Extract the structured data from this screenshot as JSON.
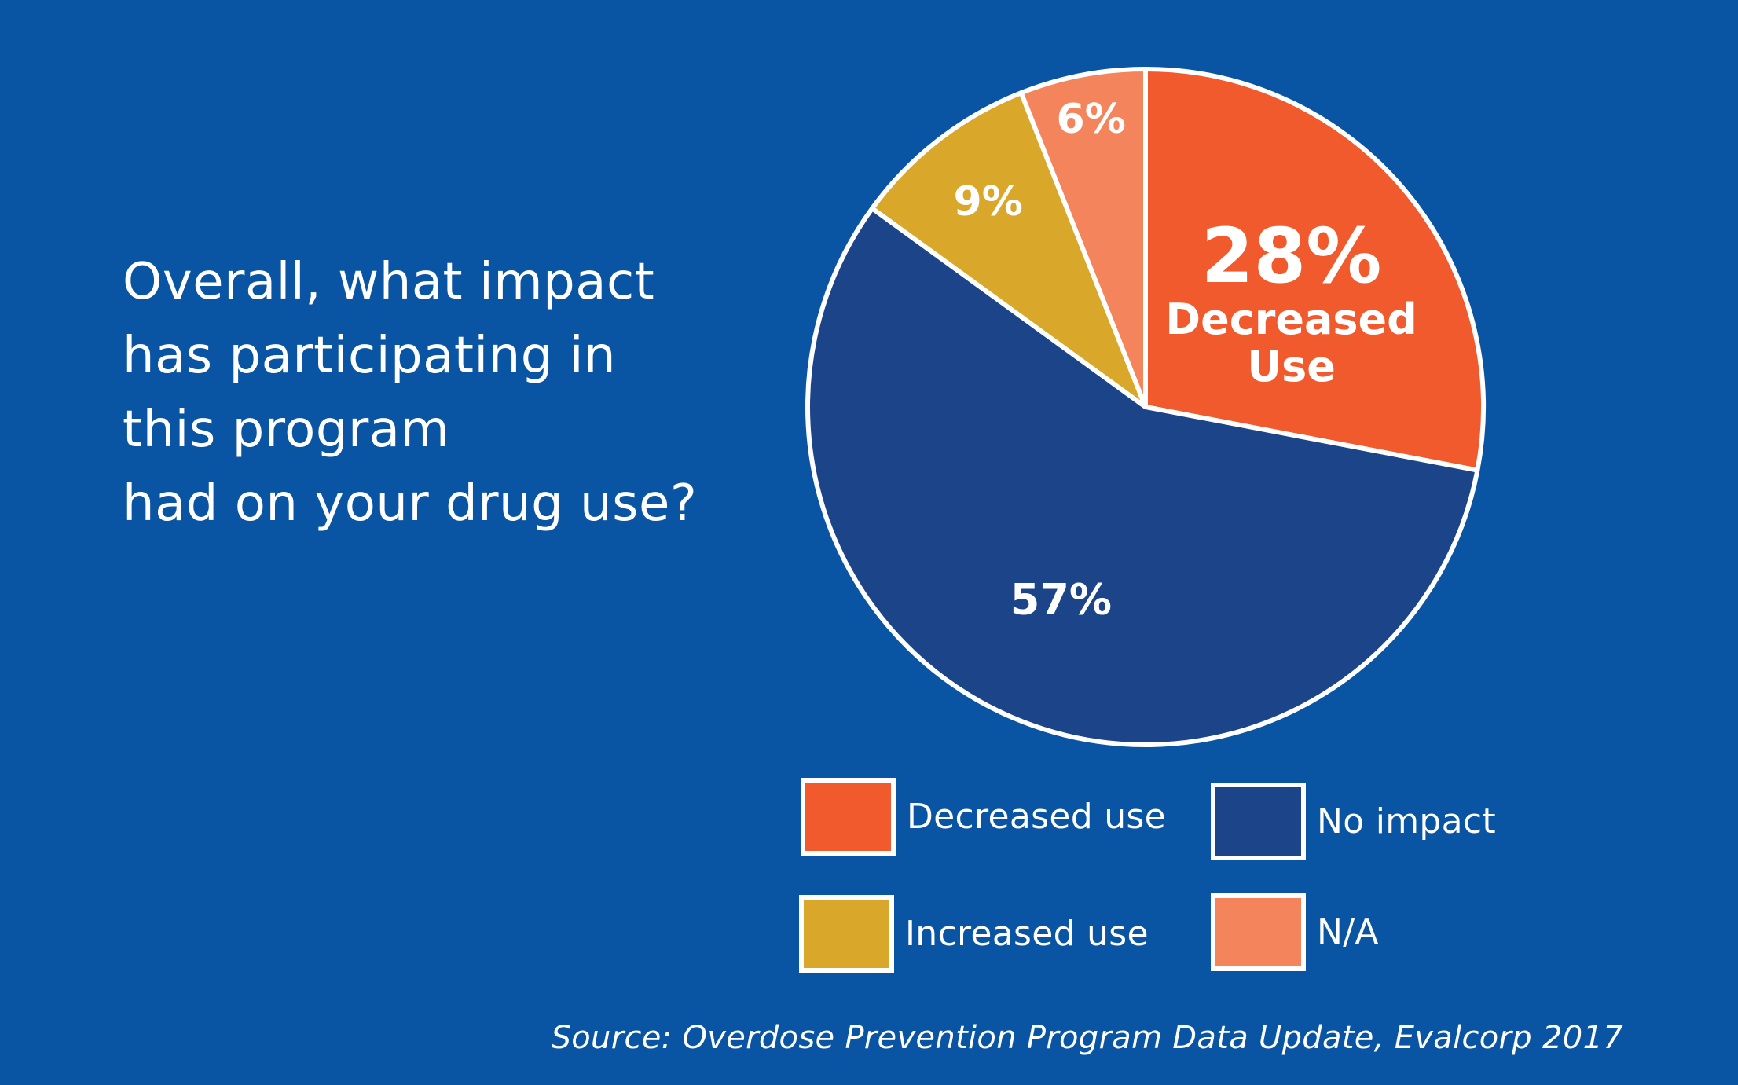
{
  "question_lines": [
    "Overall, what impact",
    "has participating in",
    "this program",
    "had on your drug use?"
  ],
  "chart_data": {
    "type": "pie",
    "title": "Overall, what impact has participating in this program had on your drug use?",
    "start_angle_deg": 0,
    "direction": "clockwise",
    "slices": [
      {
        "name": "Decreased use",
        "value": 28,
        "label": "28%",
        "sublabel": [
          "Decreased",
          "Use"
        ],
        "color": "#f05a2c"
      },
      {
        "name": "No impact",
        "value": 57,
        "label": "57%",
        "color": "#1c4589"
      },
      {
        "name": "Increased use",
        "value": 9,
        "label": "9%",
        "color": "#d9a82a"
      },
      {
        "name": "N/A",
        "value": 6,
        "label": "6%",
        "color": "#f4845b"
      }
    ],
    "legend": [
      {
        "label": "Decreased use",
        "color": "#f05a2c"
      },
      {
        "label": "No impact",
        "color": "#1c4589"
      },
      {
        "label": "Increased use",
        "color": "#d9a82a"
      },
      {
        "label": "N/A",
        "color": "#f4845b"
      }
    ]
  },
  "legend": {
    "decreased": "Decreased use",
    "no_impact": "No impact",
    "increased": "Increased use",
    "na": "N/A"
  },
  "source": "Source: Overdose Prevention Program Data Update, Evalcorp 2017",
  "colors": {
    "background": "#0a55a3",
    "decreased": "#f05a2c",
    "no_impact": "#1c4589",
    "increased": "#d9a82a",
    "na": "#f4845b",
    "outline": "#ffffff"
  }
}
